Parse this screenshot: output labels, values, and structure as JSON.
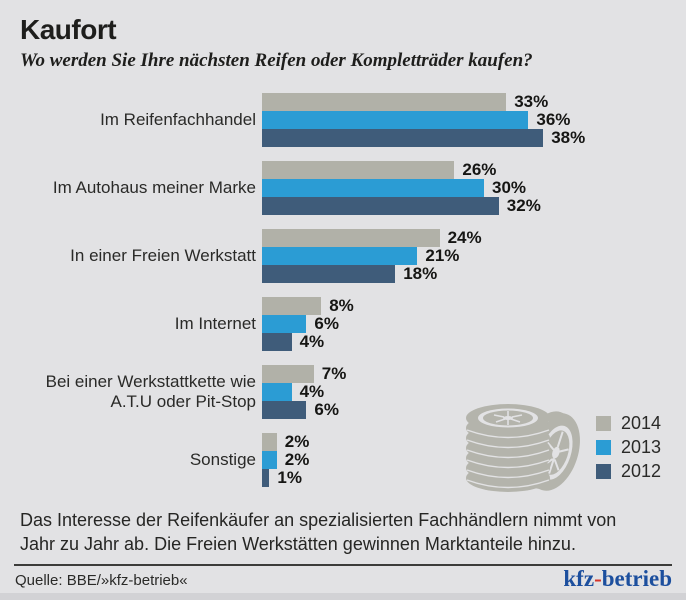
{
  "page": {
    "title": "Kaufort",
    "subtitle": "Wo werden Sie Ihre nächsten Reifen oder Kompletträder kaufen?",
    "description": "Das Interesse der Reifenkäufer an spezialisierten Fachhändlern nimmt von\nJahr zu Jahr ab. Die Freien Werkstätten gewinnen Marktanteile hinzu.",
    "source": "Quelle: BBE/»kfz-betrieb«",
    "logo": {
      "prefix": "kfz",
      "hyphen": "-",
      "suffix": "betrieb"
    }
  },
  "colors": {
    "background": "#e2e2e4",
    "series_2014": "#b1b1a8",
    "series_2013": "#2b9cd4",
    "series_2012": "#3f5c7a",
    "text": "#1e1e1c",
    "logo_blue": "#1c4f9e",
    "logo_red": "#d63328",
    "tire_illustration": "#b4b4ac"
  },
  "chart_data": {
    "type": "bar",
    "orientation": "horizontal",
    "title": "Kaufort",
    "subtitle": "Wo werden Sie Ihre nächsten Reifen oder Kompletträder kaufen?",
    "value_suffix": "%",
    "xlim": [
      0,
      40
    ],
    "grid": false,
    "legend_position": "bottom-right",
    "categories": [
      "Im Reifenfachhandel",
      "Im Autohaus meiner Marke",
      "In einer Freien Werkstatt",
      "Im Internet",
      "Bei einer Werkstattkette wie\nA.T.U oder Pit-Stop",
      "Sonstige"
    ],
    "series": [
      {
        "name": "2014",
        "color": "#b1b1a8",
        "values": [
          33,
          26,
          24,
          8,
          7,
          2
        ]
      },
      {
        "name": "2013",
        "color": "#2b9cd4",
        "values": [
          36,
          30,
          21,
          6,
          4,
          2
        ]
      },
      {
        "name": "2012",
        "color": "#3f5c7a",
        "values": [
          38,
          32,
          18,
          4,
          6,
          1
        ]
      }
    ]
  }
}
